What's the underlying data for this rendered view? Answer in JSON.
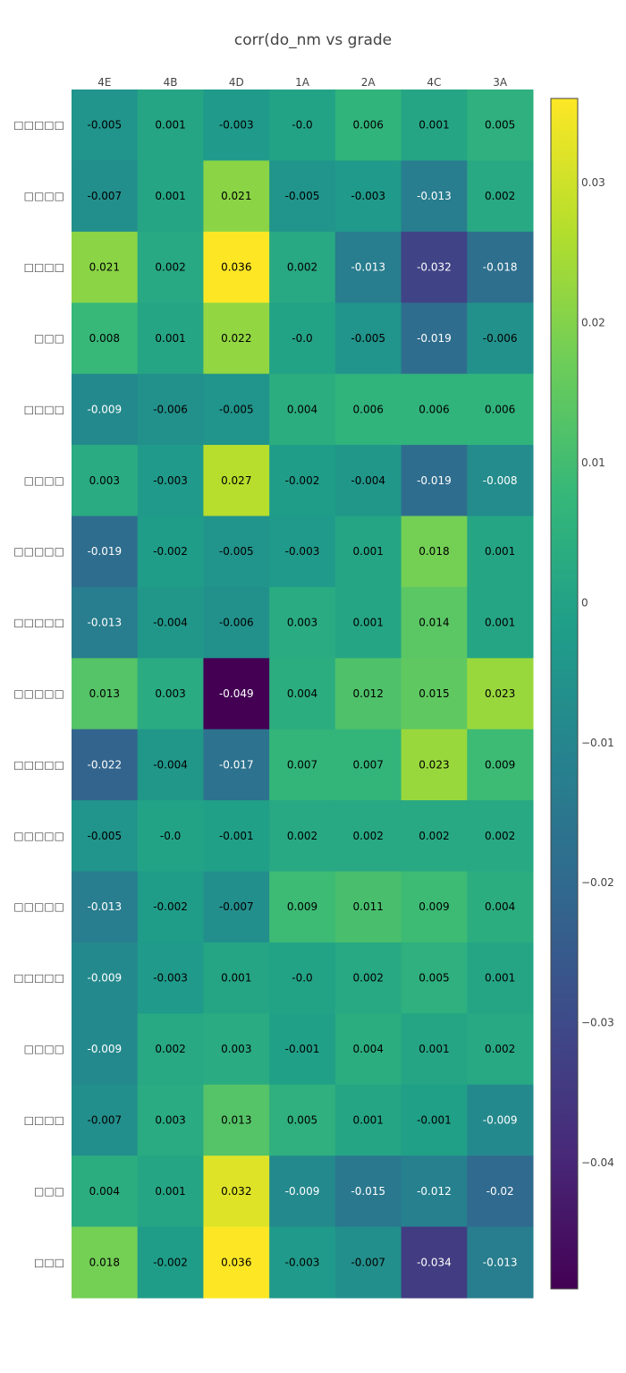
{
  "chart_data": {
    "type": "heatmap",
    "title": "corr(do_nm vs grade",
    "x_categories": [
      "4E",
      "4B",
      "4D",
      "1A",
      "2A",
      "4C",
      "3A"
    ],
    "y_categories": [
      "□□□□□",
      "□□□□",
      "□□□□",
      "□□□",
      "□□□□",
      "□□□□",
      "□□□□□",
      "□□□□□",
      "□□□□□",
      "□□□□□",
      "□□□□□",
      "□□□□□",
      "□□□□□",
      "□□□□",
      "□□□□",
      "□□□",
      "□□□"
    ],
    "values": [
      [
        -0.005,
        0.001,
        -0.003,
        -0.0,
        0.006,
        0.001,
        0.005
      ],
      [
        -0.007,
        0.001,
        0.021,
        -0.005,
        -0.003,
        -0.013,
        0.002
      ],
      [
        0.021,
        0.002,
        0.036,
        0.002,
        -0.013,
        -0.032,
        -0.018
      ],
      [
        0.008,
        0.001,
        0.022,
        -0.0,
        -0.005,
        -0.019,
        -0.006
      ],
      [
        -0.009,
        -0.006,
        -0.005,
        0.004,
        0.006,
        0.006,
        0.006
      ],
      [
        0.003,
        -0.003,
        0.027,
        -0.002,
        -0.004,
        -0.019,
        -0.008
      ],
      [
        -0.019,
        -0.002,
        -0.005,
        -0.003,
        0.001,
        0.018,
        0.001
      ],
      [
        -0.013,
        -0.004,
        -0.006,
        0.003,
        0.001,
        0.014,
        0.001
      ],
      [
        0.013,
        0.003,
        -0.049,
        0.004,
        0.012,
        0.015,
        0.023
      ],
      [
        -0.022,
        -0.004,
        -0.017,
        0.007,
        0.007,
        0.023,
        0.009
      ],
      [
        -0.005,
        -0.0,
        -0.001,
        0.002,
        0.002,
        0.002,
        0.002
      ],
      [
        -0.013,
        -0.002,
        -0.007,
        0.009,
        0.011,
        0.009,
        0.004
      ],
      [
        -0.009,
        -0.003,
        0.001,
        -0.0,
        0.002,
        0.005,
        0.001
      ],
      [
        -0.009,
        0.002,
        0.003,
        -0.001,
        0.004,
        0.001,
        0.002
      ],
      [
        -0.007,
        0.003,
        0.013,
        0.005,
        0.001,
        -0.001,
        -0.009
      ],
      [
        0.004,
        0.001,
        0.032,
        -0.009,
        -0.015,
        -0.012,
        -0.02
      ],
      [
        0.018,
        -0.002,
        0.036,
        -0.003,
        -0.007,
        -0.034,
        -0.013
      ]
    ],
    "value_labels": [
      [
        "-0.005",
        "0.001",
        "-0.003",
        "-0.0",
        "0.006",
        "0.001",
        "0.005"
      ],
      [
        "-0.007",
        "0.001",
        "0.021",
        "-0.005",
        "-0.003",
        "-0.013",
        "0.002"
      ],
      [
        "0.021",
        "0.002",
        "0.036",
        "0.002",
        "-0.013",
        "-0.032",
        "-0.018"
      ],
      [
        "0.008",
        "0.001",
        "0.022",
        "-0.0",
        "-0.005",
        "-0.019",
        "-0.006"
      ],
      [
        "-0.009",
        "-0.006",
        "-0.005",
        "0.004",
        "0.006",
        "0.006",
        "0.006"
      ],
      [
        "0.003",
        "-0.003",
        "0.027",
        "-0.002",
        "-0.004",
        "-0.019",
        "-0.008"
      ],
      [
        "-0.019",
        "-0.002",
        "-0.005",
        "-0.003",
        "0.001",
        "0.018",
        "0.001"
      ],
      [
        "-0.013",
        "-0.004",
        "-0.006",
        "0.003",
        "0.001",
        "0.014",
        "0.001"
      ],
      [
        "0.013",
        "0.003",
        "-0.049",
        "0.004",
        "0.012",
        "0.015",
        "0.023"
      ],
      [
        "-0.022",
        "-0.004",
        "-0.017",
        "0.007",
        "0.007",
        "0.023",
        "0.009"
      ],
      [
        "-0.005",
        "-0.0",
        "-0.001",
        "0.002",
        "0.002",
        "0.002",
        "0.002"
      ],
      [
        "-0.013",
        "-0.002",
        "-0.007",
        "0.009",
        "0.011",
        "0.009",
        "0.004"
      ],
      [
        "-0.009",
        "-0.003",
        "0.001",
        "-0.0",
        "0.002",
        "0.005",
        "0.001"
      ],
      [
        "-0.009",
        "0.002",
        "0.003",
        "-0.001",
        "0.004",
        "0.001",
        "0.002"
      ],
      [
        "-0.007",
        "0.003",
        "0.013",
        "0.005",
        "0.001",
        "-0.001",
        "-0.009"
      ],
      [
        "0.004",
        "0.001",
        "0.032",
        "-0.009",
        "-0.015",
        "-0.012",
        "-0.02"
      ],
      [
        "0.018",
        "-0.002",
        "0.036",
        "-0.003",
        "-0.007",
        "-0.034",
        "-0.013"
      ]
    ],
    "zmin": -0.049,
    "zmax": 0.036,
    "colorscale": "viridis",
    "colorbar_tick_values": [
      0.03,
      0.02,
      0.01,
      0,
      -0.01,
      -0.02,
      -0.03,
      -0.04
    ],
    "colorbar_tick_labels": [
      "0.03",
      "0.02",
      "0.01",
      "0",
      "−0.01",
      "−0.02",
      "−0.03",
      "−0.04"
    ],
    "x_axis_side": "top",
    "grid": false
  }
}
